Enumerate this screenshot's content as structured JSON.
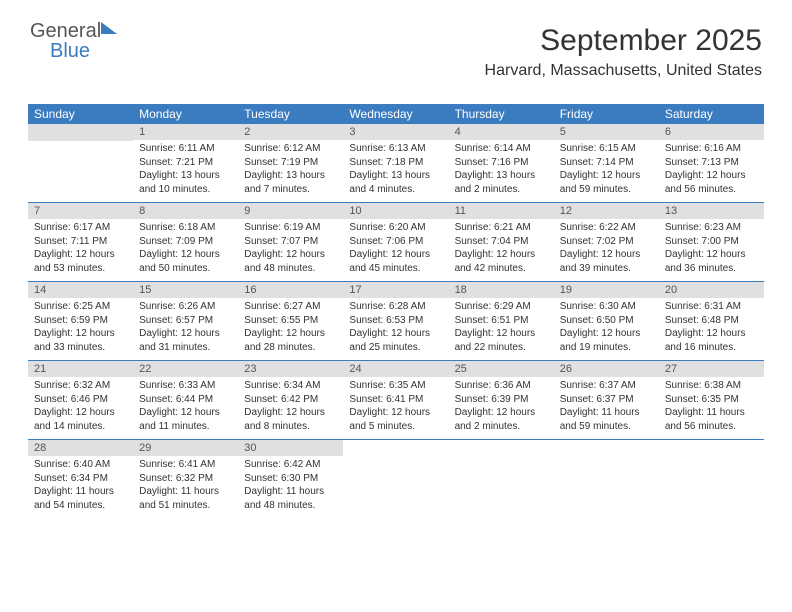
{
  "logo": {
    "text1": "General",
    "text2": "Blue"
  },
  "header": {
    "title": "September 2025",
    "subtitle": "Harvard, Massachusetts, United States"
  },
  "dayNames": [
    "Sunday",
    "Monday",
    "Tuesday",
    "Wednesday",
    "Thursday",
    "Friday",
    "Saturday"
  ],
  "colors": {
    "headerBg": "#3b7bbf",
    "headerText": "#ffffff",
    "dayNumBg": "#e0e0e0",
    "borderColor": "#3b7bbf"
  },
  "weeks": [
    [
      {
        "blank": true
      },
      {
        "num": "1",
        "sunrise": "6:11 AM",
        "sunset": "7:21 PM",
        "daylight": "13 hours and 10 minutes."
      },
      {
        "num": "2",
        "sunrise": "6:12 AM",
        "sunset": "7:19 PM",
        "daylight": "13 hours and 7 minutes."
      },
      {
        "num": "3",
        "sunrise": "6:13 AM",
        "sunset": "7:18 PM",
        "daylight": "13 hours and 4 minutes."
      },
      {
        "num": "4",
        "sunrise": "6:14 AM",
        "sunset": "7:16 PM",
        "daylight": "13 hours and 2 minutes."
      },
      {
        "num": "5",
        "sunrise": "6:15 AM",
        "sunset": "7:14 PM",
        "daylight": "12 hours and 59 minutes."
      },
      {
        "num": "6",
        "sunrise": "6:16 AM",
        "sunset": "7:13 PM",
        "daylight": "12 hours and 56 minutes."
      }
    ],
    [
      {
        "num": "7",
        "sunrise": "6:17 AM",
        "sunset": "7:11 PM",
        "daylight": "12 hours and 53 minutes."
      },
      {
        "num": "8",
        "sunrise": "6:18 AM",
        "sunset": "7:09 PM",
        "daylight": "12 hours and 50 minutes."
      },
      {
        "num": "9",
        "sunrise": "6:19 AM",
        "sunset": "7:07 PM",
        "daylight": "12 hours and 48 minutes."
      },
      {
        "num": "10",
        "sunrise": "6:20 AM",
        "sunset": "7:06 PM",
        "daylight": "12 hours and 45 minutes."
      },
      {
        "num": "11",
        "sunrise": "6:21 AM",
        "sunset": "7:04 PM",
        "daylight": "12 hours and 42 minutes."
      },
      {
        "num": "12",
        "sunrise": "6:22 AM",
        "sunset": "7:02 PM",
        "daylight": "12 hours and 39 minutes."
      },
      {
        "num": "13",
        "sunrise": "6:23 AM",
        "sunset": "7:00 PM",
        "daylight": "12 hours and 36 minutes."
      }
    ],
    [
      {
        "num": "14",
        "sunrise": "6:25 AM",
        "sunset": "6:59 PM",
        "daylight": "12 hours and 33 minutes."
      },
      {
        "num": "15",
        "sunrise": "6:26 AM",
        "sunset": "6:57 PM",
        "daylight": "12 hours and 31 minutes."
      },
      {
        "num": "16",
        "sunrise": "6:27 AM",
        "sunset": "6:55 PM",
        "daylight": "12 hours and 28 minutes."
      },
      {
        "num": "17",
        "sunrise": "6:28 AM",
        "sunset": "6:53 PM",
        "daylight": "12 hours and 25 minutes."
      },
      {
        "num": "18",
        "sunrise": "6:29 AM",
        "sunset": "6:51 PM",
        "daylight": "12 hours and 22 minutes."
      },
      {
        "num": "19",
        "sunrise": "6:30 AM",
        "sunset": "6:50 PM",
        "daylight": "12 hours and 19 minutes."
      },
      {
        "num": "20",
        "sunrise": "6:31 AM",
        "sunset": "6:48 PM",
        "daylight": "12 hours and 16 minutes."
      }
    ],
    [
      {
        "num": "21",
        "sunrise": "6:32 AM",
        "sunset": "6:46 PM",
        "daylight": "12 hours and 14 minutes."
      },
      {
        "num": "22",
        "sunrise": "6:33 AM",
        "sunset": "6:44 PM",
        "daylight": "12 hours and 11 minutes."
      },
      {
        "num": "23",
        "sunrise": "6:34 AM",
        "sunset": "6:42 PM",
        "daylight": "12 hours and 8 minutes."
      },
      {
        "num": "24",
        "sunrise": "6:35 AM",
        "sunset": "6:41 PM",
        "daylight": "12 hours and 5 minutes."
      },
      {
        "num": "25",
        "sunrise": "6:36 AM",
        "sunset": "6:39 PM",
        "daylight": "12 hours and 2 minutes."
      },
      {
        "num": "26",
        "sunrise": "6:37 AM",
        "sunset": "6:37 PM",
        "daylight": "11 hours and 59 minutes."
      },
      {
        "num": "27",
        "sunrise": "6:38 AM",
        "sunset": "6:35 PM",
        "daylight": "11 hours and 56 minutes."
      }
    ],
    [
      {
        "num": "28",
        "sunrise": "6:40 AM",
        "sunset": "6:34 PM",
        "daylight": "11 hours and 54 minutes."
      },
      {
        "num": "29",
        "sunrise": "6:41 AM",
        "sunset": "6:32 PM",
        "daylight": "11 hours and 51 minutes."
      },
      {
        "num": "30",
        "sunrise": "6:42 AM",
        "sunset": "6:30 PM",
        "daylight": "11 hours and 48 minutes."
      },
      {
        "blank": true,
        "noBg": true
      },
      {
        "blank": true,
        "noBg": true
      },
      {
        "blank": true,
        "noBg": true
      },
      {
        "blank": true,
        "noBg": true
      }
    ]
  ],
  "labels": {
    "sunrise": "Sunrise:",
    "sunset": "Sunset:",
    "daylight": "Daylight:"
  }
}
